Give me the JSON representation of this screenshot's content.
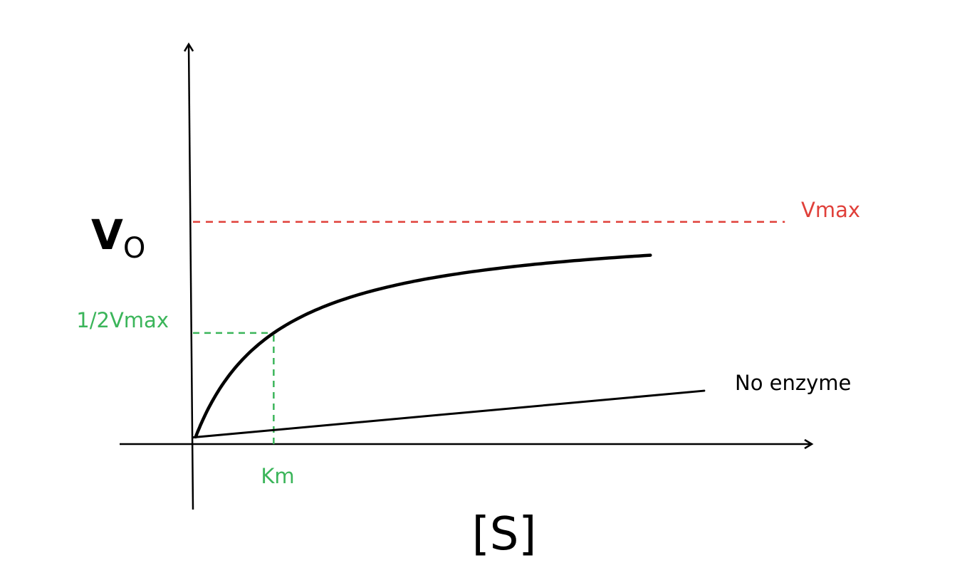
{
  "chart_data": {
    "type": "line",
    "title": "",
    "xlabel": "[S]",
    "ylabel": {
      "main": "V",
      "subscript": "O"
    },
    "x_axis_ticks": [],
    "y_axis_ticks": [],
    "grid": false,
    "series": [
      {
        "label": "",
        "color": "#000000",
        "description_type": "michaelis-menten",
        "vmax": 1.0,
        "km": 0.15,
        "x_range": [
          0.005,
          0.85
        ]
      },
      {
        "label": "No enzyme",
        "color": "#000000",
        "description_type": "linear",
        "points": [
          {
            "x": 0.0,
            "y": 0.03
          },
          {
            "x": 0.95,
            "y": 0.24
          }
        ]
      }
    ],
    "reference_lines": [
      {
        "label": "Vmax",
        "color": "#e0403a",
        "orientation": "horizontal",
        "y": 1.0,
        "x_range": [
          0.0,
          1.1
        ],
        "style": "dashed"
      },
      {
        "label": "1/2Vmax",
        "color": "#3bb55a",
        "orientation": "horizontal",
        "y": 0.5,
        "x_range": [
          0.0,
          0.15
        ],
        "style": "dashed"
      },
      {
        "label": "Km",
        "color": "#3bb55a",
        "orientation": "vertical",
        "x": 0.15,
        "y_range": [
          0.0,
          0.5
        ],
        "style": "dashed"
      }
    ],
    "xlim": [
      0.0,
      1.15
    ],
    "ylim": [
      0.0,
      1.8
    ]
  }
}
